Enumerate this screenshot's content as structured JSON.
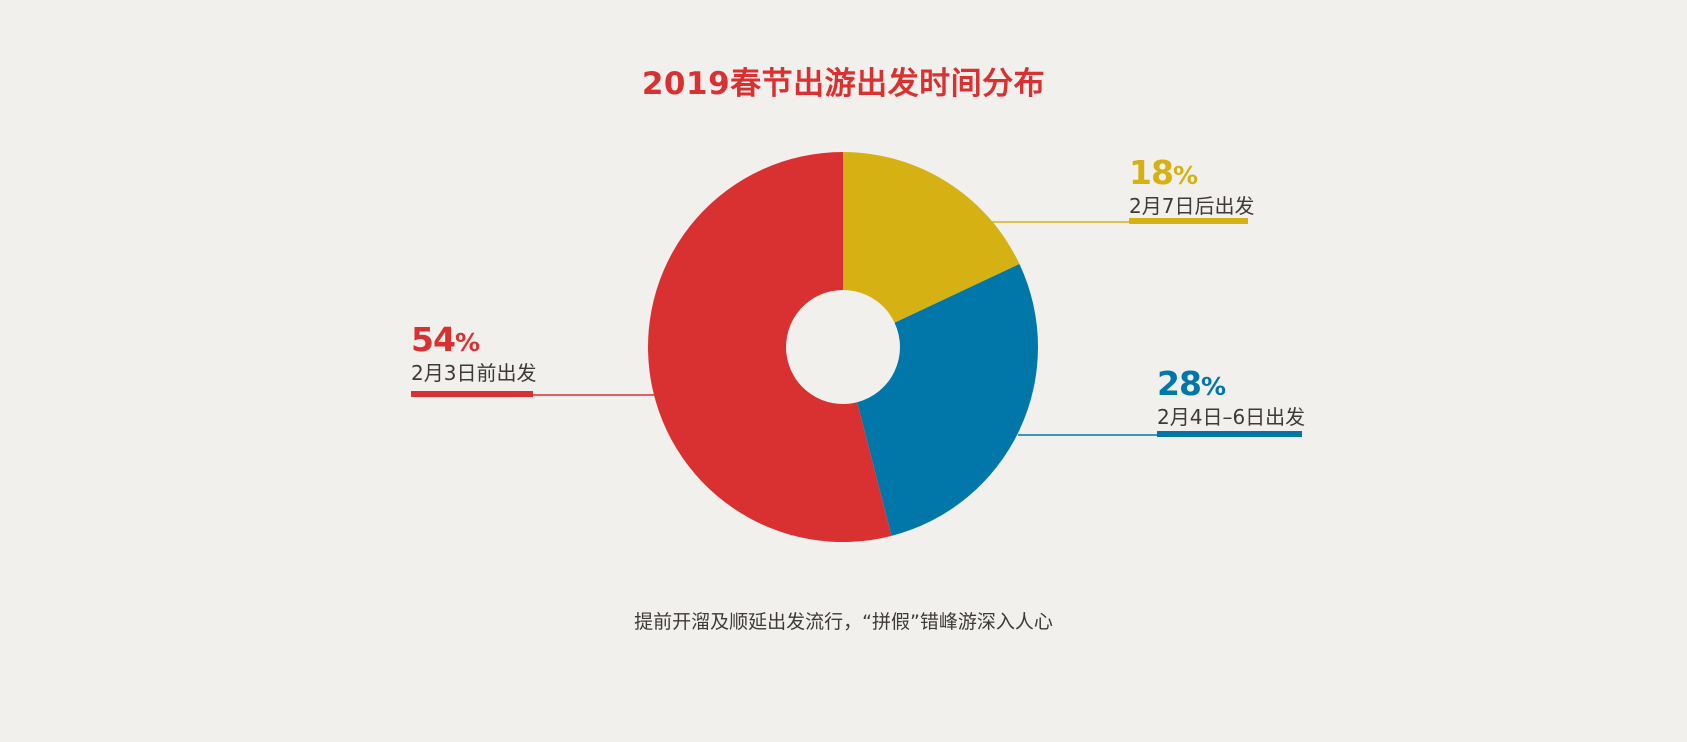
{
  "chart_data": {
    "type": "pie",
    "title": "2019春节出游出发时间分布",
    "caption": "提前开溜及顺延出发流行，“拼假”错峰游深入人心",
    "slices": [
      {
        "label": "2月3日前出发",
        "value": 54,
        "display": "54",
        "color": "#d93131"
      },
      {
        "label": "2月4日–6日出发",
        "value": 28,
        "display": "28",
        "color": "#0077a8"
      },
      {
        "label": "2月7日后出发",
        "value": 18,
        "display": "18",
        "color": "#d6b114"
      }
    ],
    "percent_sign": "%",
    "donut": true
  }
}
